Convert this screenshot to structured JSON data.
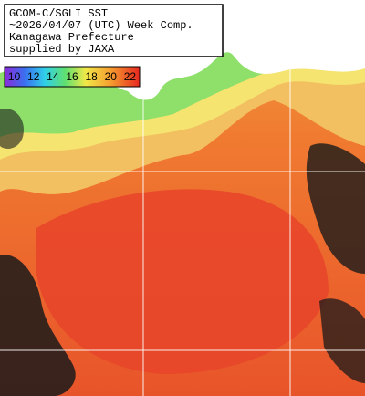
{
  "header": {
    "lines": [
      "GCOM-C/SGLI SST",
      "~2026/04/07 (UTC) Week Comp.",
      "Kanagawa Prefecture",
      "supplied by JAXA"
    ]
  },
  "colorbar": {
    "labels": [
      "10",
      "12",
      "14",
      "16",
      "18",
      "20",
      "22"
    ],
    "colors": [
      "#7a1fd0",
      "#2a6cf0",
      "#22c8e0",
      "#4ee07a",
      "#f0e040",
      "#f5a030",
      "#e8281e"
    ]
  }
}
